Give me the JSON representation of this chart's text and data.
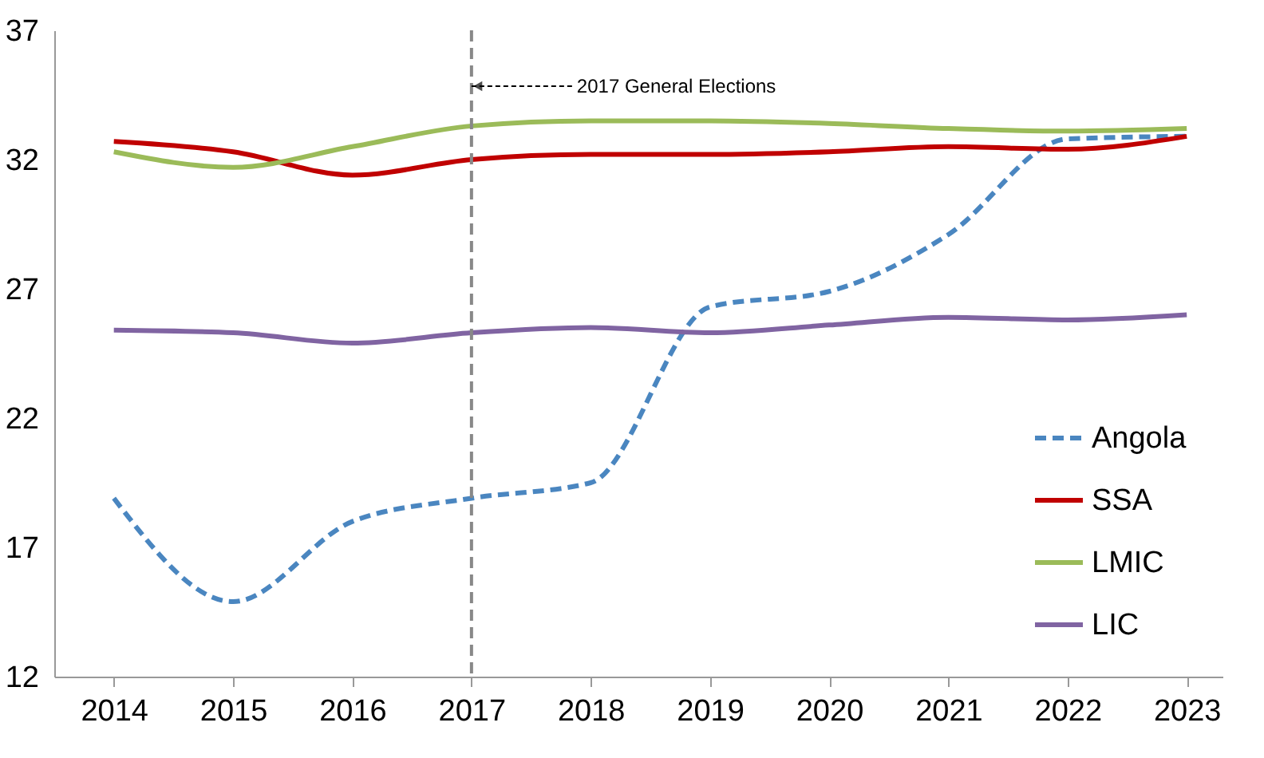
{
  "chart_data": {
    "type": "line",
    "x": [
      2014,
      2015,
      2016,
      2017,
      2018,
      2019,
      2020,
      2021,
      2022,
      2023
    ],
    "xlim": [
      2013.5,
      2023.3
    ],
    "xticks": [
      2014,
      2015,
      2016,
      2017,
      2018,
      2019,
      2020,
      2021,
      2022,
      2023
    ],
    "ylim": [
      12,
      37
    ],
    "yticks": [
      12,
      17,
      22,
      27,
      32,
      37
    ],
    "grid": false,
    "legend": "bottom right",
    "series": [
      {
        "name": "Angola",
        "color": "#4a86c0",
        "line_style": "dashed",
        "values": [
          18.9,
          14.9,
          18.0,
          18.9,
          19.5,
          26.3,
          26.9,
          29.1,
          32.8,
          32.9
        ]
      },
      {
        "name": "SSA",
        "color": "#c00000",
        "line_style": "solid",
        "values": [
          32.7,
          32.3,
          31.4,
          32.0,
          32.2,
          32.2,
          32.3,
          32.5,
          32.4,
          32.9
        ]
      },
      {
        "name": "LMIC",
        "color": "#9bbb59",
        "line_style": "solid",
        "values": [
          32.3,
          31.7,
          32.5,
          33.3,
          33.5,
          33.5,
          33.4,
          33.2,
          33.1,
          33.2
        ]
      },
      {
        "name": "LIC",
        "color": "#8064a2",
        "line_style": "solid",
        "values": [
          25.4,
          25.3,
          24.9,
          25.3,
          25.5,
          25.3,
          25.6,
          25.9,
          25.8,
          26.0
        ]
      }
    ],
    "ref_lines": [
      {
        "axis": "x",
        "value": 2017,
        "label": "2017 General Elections",
        "color": "#888888",
        "line_style": "dashed"
      }
    ]
  }
}
